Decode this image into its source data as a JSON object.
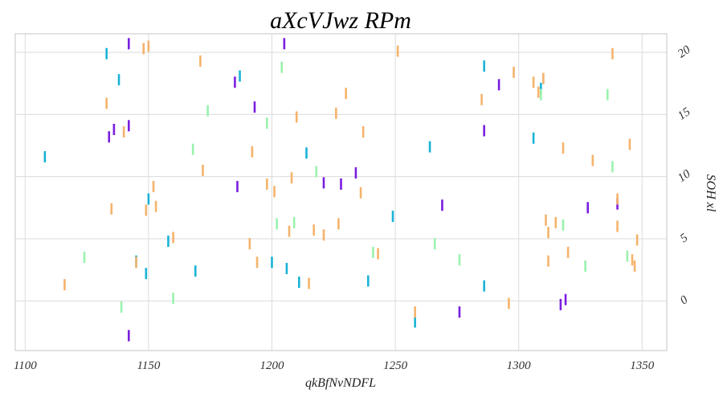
{
  "chart_data": {
    "type": "scatter",
    "title": "aXcVJwz RPm",
    "xlabel": "qkBfNvNDFL",
    "ylabel": "SOH xl",
    "xlim": [
      1096,
      1360
    ],
    "ylim": [
      -4,
      21.5
    ],
    "xticks": [
      1100,
      1150,
      1200,
      1250,
      1300,
      1350
    ],
    "yticks": [
      0,
      5,
      10,
      15,
      20
    ],
    "x_tick_labels": [
      "1100",
      "1150",
      "1200",
      "1250",
      "1300",
      "1350"
    ],
    "y_tick_labels": [
      "0",
      "5",
      "10",
      "15",
      "20"
    ],
    "y_axis_side": "right",
    "grid": true,
    "marker": "vertical-line",
    "series": [
      {
        "color": "#1ab3d6",
        "points": [
          [
            1108,
            11.6
          ],
          [
            1133,
            19.9
          ],
          [
            1138,
            17.8
          ],
          [
            1145,
            3.2
          ],
          [
            1149,
            2.2
          ],
          [
            1150,
            8.2
          ],
          [
            1158,
            4.8
          ],
          [
            1169,
            2.4
          ],
          [
            1187,
            18.1
          ],
          [
            1200,
            3.1
          ],
          [
            1206,
            2.6
          ],
          [
            1211,
            1.5
          ],
          [
            1214,
            11.9
          ],
          [
            1239,
            1.6
          ],
          [
            1249,
            6.8
          ],
          [
            1258,
            -1.7
          ],
          [
            1264,
            12.4
          ],
          [
            1286,
            18.9
          ],
          [
            1286,
            1.2
          ],
          [
            1306,
            13.1
          ],
          [
            1309,
            17.1
          ]
        ]
      },
      {
        "color": "#7a1ee0",
        "points": [
          [
            1142,
            20.7
          ],
          [
            1134,
            13.2
          ],
          [
            1136,
            13.8
          ],
          [
            1142,
            14.1
          ],
          [
            1142,
            -2.8
          ],
          [
            1185,
            17.6
          ],
          [
            1186,
            9.2
          ],
          [
            1193,
            15.6
          ],
          [
            1205,
            20.7
          ],
          [
            1221,
            9.5
          ],
          [
            1228,
            9.4
          ],
          [
            1234,
            10.3
          ],
          [
            1269,
            7.7
          ],
          [
            1276,
            -0.9
          ],
          [
            1286,
            13.7
          ],
          [
            1292,
            17.4
          ],
          [
            1317,
            -0.3
          ],
          [
            1319,
            0.1
          ],
          [
            1328,
            7.5
          ],
          [
            1340,
            7.8
          ]
        ]
      },
      {
        "color": "#f5b36b",
        "points": [
          [
            1116,
            1.3
          ],
          [
            1133,
            15.9
          ],
          [
            1135,
            7.4
          ],
          [
            1145,
            3.1
          ],
          [
            1140,
            13.6
          ],
          [
            1148,
            20.3
          ],
          [
            1149,
            7.3
          ],
          [
            1150,
            20.5
          ],
          [
            1152,
            9.2
          ],
          [
            1153,
            7.6
          ],
          [
            1160,
            5.1
          ],
          [
            1171,
            19.3
          ],
          [
            1172,
            10.5
          ],
          [
            1191,
            4.6
          ],
          [
            1192,
            12
          ],
          [
            1194,
            3.1
          ],
          [
            1198,
            9.4
          ],
          [
            1201,
            8.8
          ],
          [
            1207,
            5.6
          ],
          [
            1208,
            9.9
          ],
          [
            1210,
            14.8
          ],
          [
            1215,
            1.4
          ],
          [
            1217,
            5.7
          ],
          [
            1221,
            5.3
          ],
          [
            1226,
            15.1
          ],
          [
            1227,
            6.2
          ],
          [
            1230,
            16.7
          ],
          [
            1236,
            8.7
          ],
          [
            1237,
            13.6
          ],
          [
            1243,
            3.8
          ],
          [
            1251,
            20.1
          ],
          [
            1258,
            -0.9
          ],
          [
            1285,
            16.2
          ],
          [
            1296,
            -0.2
          ],
          [
            1298,
            18.4
          ],
          [
            1306,
            17.6
          ],
          [
            1308,
            16.8
          ],
          [
            1310,
            17.9
          ],
          [
            1311,
            6.5
          ],
          [
            1312,
            5.5
          ],
          [
            1312,
            3.2
          ],
          [
            1315,
            6.3
          ],
          [
            1318,
            12.3
          ],
          [
            1320,
            3.9
          ],
          [
            1330,
            11.3
          ],
          [
            1338,
            19.9
          ],
          [
            1340,
            8.2
          ],
          [
            1340,
            6.0
          ],
          [
            1345,
            12.6
          ],
          [
            1346,
            3.3
          ],
          [
            1347,
            2.8
          ],
          [
            1348,
            4.9
          ]
        ]
      },
      {
        "color": "#9af2ae",
        "points": [
          [
            1124,
            3.5
          ],
          [
            1139,
            -0.5
          ],
          [
            1160,
            0.2
          ],
          [
            1168,
            12.2
          ],
          [
            1174,
            15.3
          ],
          [
            1198,
            14.3
          ],
          [
            1202,
            6.2
          ],
          [
            1204,
            18.8
          ],
          [
            1209,
            6.3
          ],
          [
            1218,
            10.4
          ],
          [
            1241,
            3.9
          ],
          [
            1266,
            4.6
          ],
          [
            1276,
            3.3
          ],
          [
            1309,
            16.6
          ],
          [
            1318,
            6.1
          ],
          [
            1327,
            2.8
          ],
          [
            1336,
            16.6
          ],
          [
            1338,
            10.8
          ],
          [
            1344,
            3.6
          ]
        ]
      }
    ]
  }
}
